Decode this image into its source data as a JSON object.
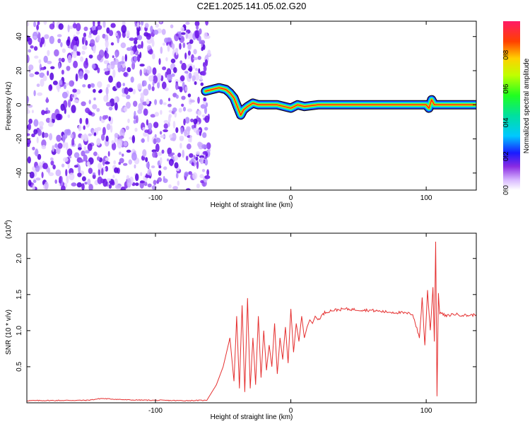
{
  "title": "C2E1.2025.141.05.02.G20",
  "chart_data": [
    {
      "type": "heatmap",
      "xlabel": "Height of straight line (km)",
      "ylabel": "Frequency (Hz)",
      "xlim": [
        -195,
        137
      ],
      "ylim": [
        -50,
        49
      ],
      "xticks": [
        -100,
        0,
        100
      ],
      "yticks": [
        -40,
        -20,
        0,
        20,
        40
      ],
      "noise_region_x": [
        -195,
        -60
      ],
      "ridge": {
        "x": [
          -63,
          -58,
          -53,
          -48,
          -45,
          -42,
          -39,
          -37,
          -35,
          -32,
          -28,
          -24,
          -20,
          -15,
          -10,
          -5,
          0,
          5,
          10,
          20,
          40,
          60,
          80,
          100,
          102,
          104,
          106,
          110,
          137
        ],
        "y": [
          8,
          9,
          10,
          9,
          7,
          4,
          -2,
          -6,
          -3,
          -1,
          1,
          0,
          0,
          0,
          0,
          -1,
          -2,
          0,
          -1,
          0,
          0,
          0,
          0,
          0,
          -2,
          3,
          0,
          0,
          0
        ]
      },
      "colorbar": {
        "label": "Normalized spectral amplitude",
        "ticks": [
          0.0,
          0.2,
          0.4,
          0.6,
          0.8
        ],
        "range": [
          0,
          1
        ]
      }
    },
    {
      "type": "line",
      "xlabel": "Height of straight line (km)",
      "ylabel": "SNR (10 * v/v)",
      "multiplier_base": "(x10",
      "multiplier_exp": "4",
      "multiplier_close": ")",
      "xlim": [
        -195,
        137
      ],
      "ylim": [
        0,
        23500
      ],
      "xticks": [
        -100,
        0,
        100
      ],
      "yticks": [
        5000,
        10000,
        15000,
        20000
      ],
      "ytick_labels": [
        "0.5",
        "1.0",
        "1.5",
        "2.0"
      ],
      "color": "#e53030",
      "series": [
        {
          "x": [
            -195,
            -150,
            -140,
            -120,
            -100,
            -80,
            -62,
            -55,
            -50,
            -45,
            -42,
            -40,
            -38,
            -36,
            -34,
            -32,
            -30,
            -28,
            -26,
            -24,
            -22,
            -20,
            -18,
            -16,
            -14,
            -12,
            -10,
            -8,
            -6,
            -4,
            -2,
            0,
            2,
            4,
            6,
            8,
            10,
            12,
            14,
            16,
            18,
            20,
            25,
            30,
            40,
            50,
            60,
            70,
            80,
            90,
            95,
            97,
            99,
            101,
            103,
            105,
            106,
            107,
            108,
            109,
            110,
            115,
            120,
            130,
            137
          ],
          "y": [
            300,
            350,
            600,
            400,
            350,
            300,
            350,
            2500,
            5000,
            9000,
            3000,
            12000,
            2000,
            13500,
            1500,
            14500,
            2000,
            9000,
            2500,
            12000,
            3500,
            10000,
            4500,
            8000,
            5000,
            11000,
            4000,
            9000,
            6000,
            10500,
            5500,
            13000,
            7000,
            11000,
            8500,
            12000,
            9000,
            10500,
            11500,
            11000,
            12000,
            11500,
            12500,
            12800,
            13000,
            12900,
            12800,
            12600,
            12500,
            12300,
            9000,
            14500,
            8000,
            15500,
            10000,
            16000,
            8500,
            22500,
            1000,
            15000,
            12500,
            12000,
            12300,
            12100,
            12200
          ]
        }
      ]
    }
  ]
}
